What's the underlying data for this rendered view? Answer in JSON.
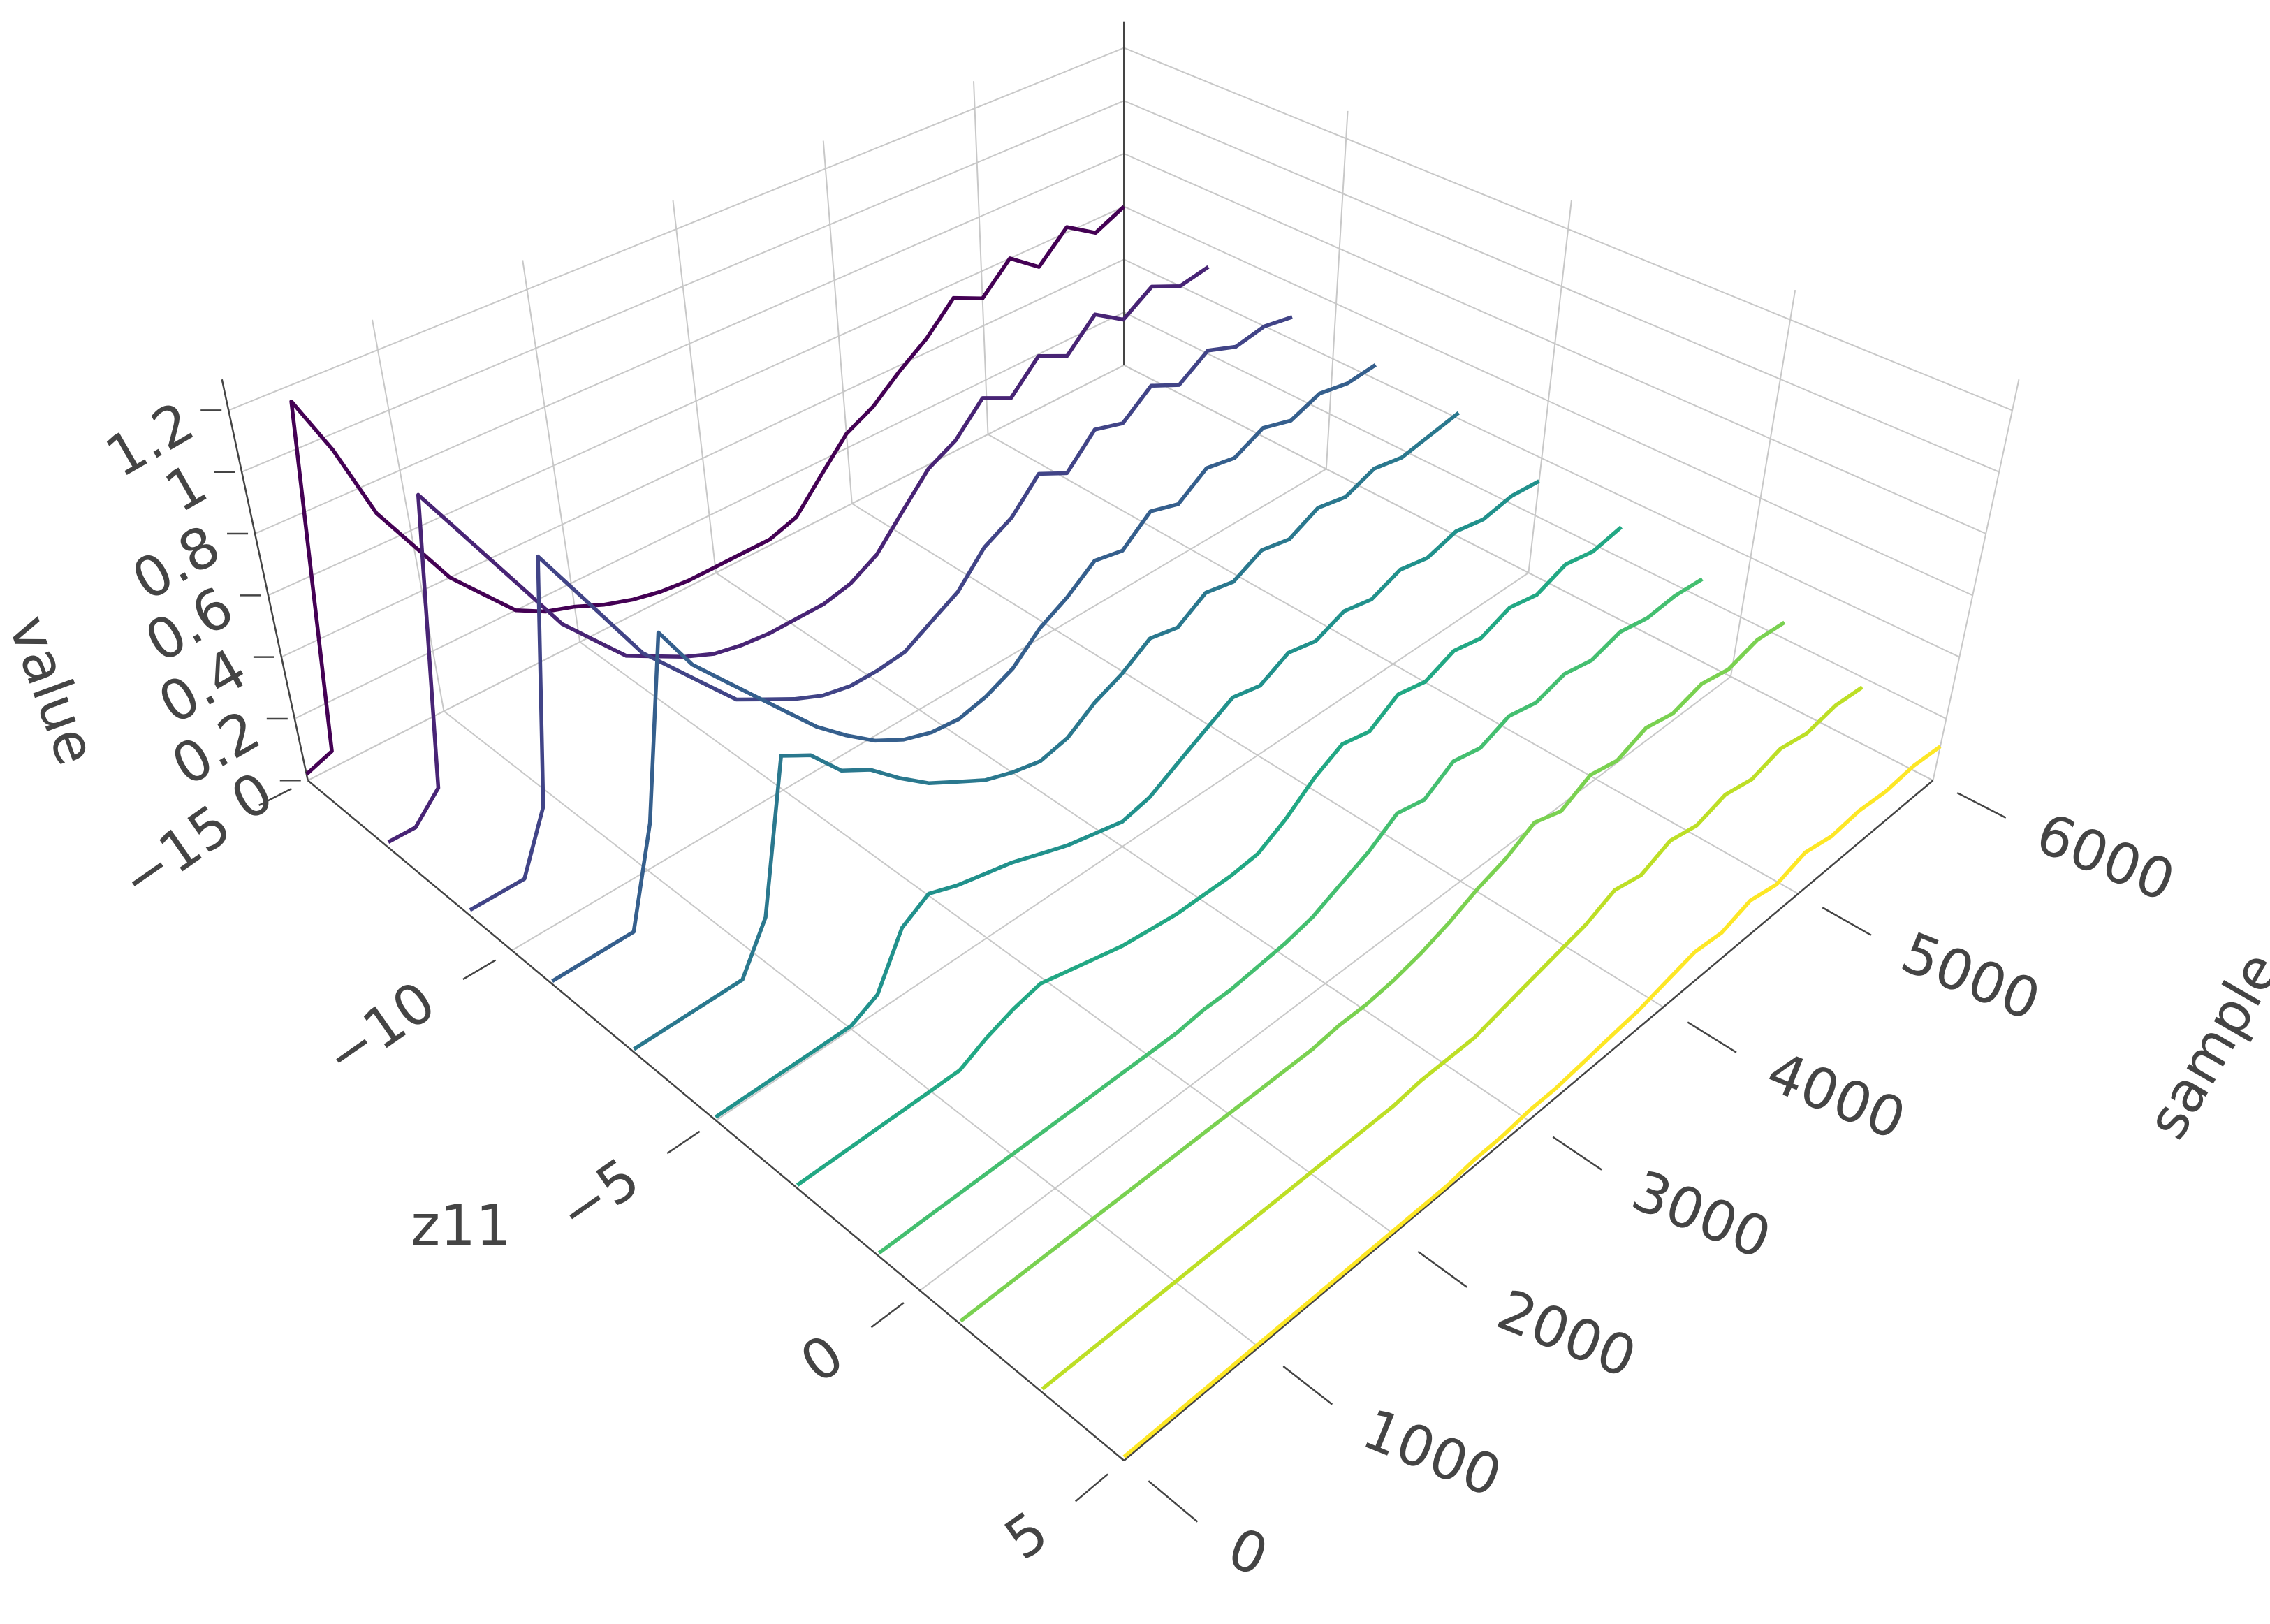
{
  "chart_data": {
    "type": "line3d",
    "x_label": "sample",
    "y_label": "z11",
    "z_label": "value",
    "x": [
      0,
      200,
      400,
      600,
      800,
      1000,
      1200,
      1400,
      1600,
      1800,
      2000,
      2200,
      2400,
      2600,
      2800,
      3000,
      3200,
      3400,
      3600,
      3800,
      4000,
      4200,
      4400,
      4600,
      4800,
      5000,
      5200,
      5400,
      5600,
      5800,
      6000
    ],
    "xlim": [
      0,
      6000
    ],
    "xticks": [
      0,
      1000,
      2000,
      3000,
      4000,
      5000,
      6000
    ],
    "ylim": [
      -15,
      5
    ],
    "yticks": [
      {
        "value": -15,
        "label": "−15"
      },
      {
        "value": -10,
        "label": "−10"
      },
      {
        "value": -5,
        "label": "−5"
      },
      0,
      5
    ],
    "zlim": [
      0,
      1.3
    ],
    "zticks": [
      0,
      0.2,
      0.4,
      0.6,
      0.8,
      1,
      1.2
    ],
    "grid": true,
    "series": [
      {
        "z": -15,
        "color": "#440154",
        "values": [
          0.02,
          0.05,
          1.15,
          0.95,
          0.7,
          0.55,
          0.4,
          0.3,
          0.2,
          0.15,
          0.12,
          0.08,
          0.05,
          0.03,
          0.02,
          0.02,
          0.02,
          0.02,
          0.05,
          0.15,
          0.25,
          0.3,
          0.38,
          0.45,
          0.55,
          0.5,
          0.6,
          0.52,
          0.62,
          0.55,
          0.6
        ]
      },
      {
        "z": -13,
        "color": "#482475",
        "values": [
          0.02,
          0.02,
          0.1,
          1.0,
          0.85,
          0.7,
          0.55,
          0.4,
          0.3,
          0.2,
          0.15,
          0.1,
          0.06,
          0.04,
          0.03,
          0.03,
          0.03,
          0.05,
          0.1,
          0.2,
          0.3,
          0.35,
          0.45,
          0.4,
          0.5,
          0.45,
          0.55,
          0.48,
          0.55,
          0.5,
          0.52
        ]
      },
      {
        "z": -11,
        "color": "#414487",
        "values": [
          0.02,
          0.02,
          0.02,
          0.2,
          0.95,
          0.8,
          0.65,
          0.5,
          0.4,
          0.3,
          0.2,
          0.15,
          0.1,
          0.06,
          0.04,
          0.04,
          0.05,
          0.1,
          0.15,
          0.25,
          0.3,
          0.4,
          0.35,
          0.45,
          0.42,
          0.5,
          0.45,
          0.52,
          0.48,
          0.5,
          0.48
        ]
      },
      {
        "z": -9,
        "color": "#355f8d",
        "values": [
          0.01,
          0.01,
          0.01,
          0.01,
          0.3,
          0.85,
          0.7,
          0.6,
          0.5,
          0.4,
          0.3,
          0.22,
          0.15,
          0.1,
          0.07,
          0.06,
          0.08,
          0.12,
          0.2,
          0.25,
          0.32,
          0.3,
          0.38,
          0.35,
          0.42,
          0.4,
          0.45,
          0.42,
          0.46,
          0.44,
          0.45
        ]
      },
      {
        "z": -7,
        "color": "#2a788e",
        "values": [
          0.01,
          0.01,
          0.01,
          0.01,
          0.01,
          0.15,
          0.6,
          0.55,
          0.45,
          0.4,
          0.32,
          0.25,
          0.2,
          0.15,
          0.12,
          0.1,
          0.12,
          0.18,
          0.22,
          0.28,
          0.26,
          0.32,
          0.3,
          0.35,
          0.33,
          0.38,
          0.36,
          0.4,
          0.38,
          0.4,
          0.42
        ]
      },
      {
        "z": -5,
        "color": "#21918c",
        "values": [
          0.01,
          0.01,
          0.01,
          0.01,
          0.01,
          0.01,
          0.05,
          0.2,
          0.25,
          0.22,
          0.2,
          0.18,
          0.15,
          0.12,
          0.1,
          0.08,
          0.1,
          0.15,
          0.2,
          0.25,
          0.23,
          0.28,
          0.26,
          0.3,
          0.28,
          0.32,
          0.3,
          0.33,
          0.31,
          0.33,
          0.32
        ]
      },
      {
        "z": -3,
        "color": "#22a884",
        "values": [
          0.01,
          0.01,
          0.01,
          0.01,
          0.01,
          0.01,
          0.01,
          0.05,
          0.08,
          0.1,
          0.08,
          0.06,
          0.04,
          0.03,
          0.02,
          0.02,
          0.02,
          0.03,
          0.08,
          0.15,
          0.2,
          0.18,
          0.24,
          0.22,
          0.26,
          0.24,
          0.28,
          0.26,
          0.3,
          0.28,
          0.3
        ]
      },
      {
        "z": -1,
        "color": "#44bf70",
        "values": [
          0.01,
          0.01,
          0.01,
          0.01,
          0.01,
          0.01,
          0.01,
          0.01,
          0.01,
          0.01,
          0.01,
          0.01,
          0.02,
          0.02,
          0.03,
          0.04,
          0.06,
          0.1,
          0.14,
          0.2,
          0.18,
          0.24,
          0.22,
          0.26,
          0.24,
          0.27,
          0.25,
          0.28,
          0.26,
          0.27,
          0.26
        ]
      },
      {
        "z": 1,
        "color": "#7ad151",
        "values": [
          0.01,
          0.01,
          0.01,
          0.01,
          0.01,
          0.01,
          0.01,
          0.01,
          0.01,
          0.01,
          0.01,
          0.01,
          0.01,
          0.01,
          0.02,
          0.02,
          0.03,
          0.05,
          0.08,
          0.12,
          0.15,
          0.2,
          0.17,
          0.22,
          0.2,
          0.24,
          0.22,
          0.25,
          0.23,
          0.26,
          0.25
        ]
      },
      {
        "z": 3,
        "color": "#bddf26",
        "values": [
          0.01,
          0.01,
          0.01,
          0.01,
          0.01,
          0.01,
          0.01,
          0.01,
          0.01,
          0.01,
          0.01,
          0.01,
          0.01,
          0.01,
          0.02,
          0.02,
          0.02,
          0.04,
          0.06,
          0.08,
          0.1,
          0.14,
          0.12,
          0.16,
          0.14,
          0.17,
          0.15,
          0.18,
          0.16,
          0.18,
          0.17
        ]
      },
      {
        "z": 5,
        "color": "#fde725",
        "values": [
          0.01,
          0.01,
          0.01,
          0.01,
          0.01,
          0.01,
          0.01,
          0.01,
          0.01,
          0.01,
          0.01,
          0.01,
          0.01,
          0.02,
          0.02,
          0.03,
          0.03,
          0.04,
          0.05,
          0.06,
          0.08,
          0.1,
          0.09,
          0.12,
          0.1,
          0.13,
          0.11,
          0.12,
          0.11,
          0.12,
          0.11
        ]
      }
    ]
  }
}
